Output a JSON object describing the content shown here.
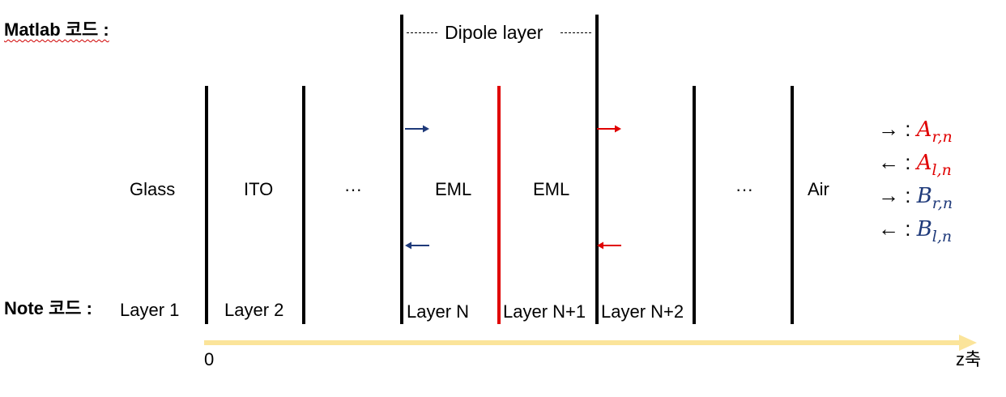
{
  "headings": {
    "matlab_label": "Matlab 코드 :",
    "note_label": "Note 코드 :"
  },
  "dipole": {
    "label": "Dipole layer"
  },
  "media": {
    "glass": "Glass",
    "ito": "ITO",
    "dots_left": "···",
    "eml_1": "EML",
    "eml_2": "EML",
    "dots_right": "···",
    "air": "Air"
  },
  "layers": {
    "layer_1": "Layer 1",
    "layer_2": "Layer 2",
    "layer_n": "Layer N",
    "layer_n1": "Layer N+1",
    "layer_n2": "Layer N+2"
  },
  "axis": {
    "origin": "0",
    "label": "z축"
  },
  "legend": [
    {
      "arrow": "→ :",
      "symbol": "A",
      "subscript": "r,n",
      "color": "#e00000"
    },
    {
      "arrow": "← :",
      "symbol": "A",
      "subscript": "l,n",
      "color": "#e00000"
    },
    {
      "arrow": "→ :",
      "symbol": "B",
      "subscript": "r,n",
      "color": "#1f3a7a"
    },
    {
      "arrow": "← :",
      "symbol": "B",
      "subscript": "l,n",
      "color": "#1f3a7a"
    }
  ],
  "colors": {
    "interface": "#000000",
    "dipole_interface": "#e00000",
    "a_coeff": "#e00000",
    "b_coeff": "#1f3a7a",
    "axis": "#fbe49a"
  }
}
